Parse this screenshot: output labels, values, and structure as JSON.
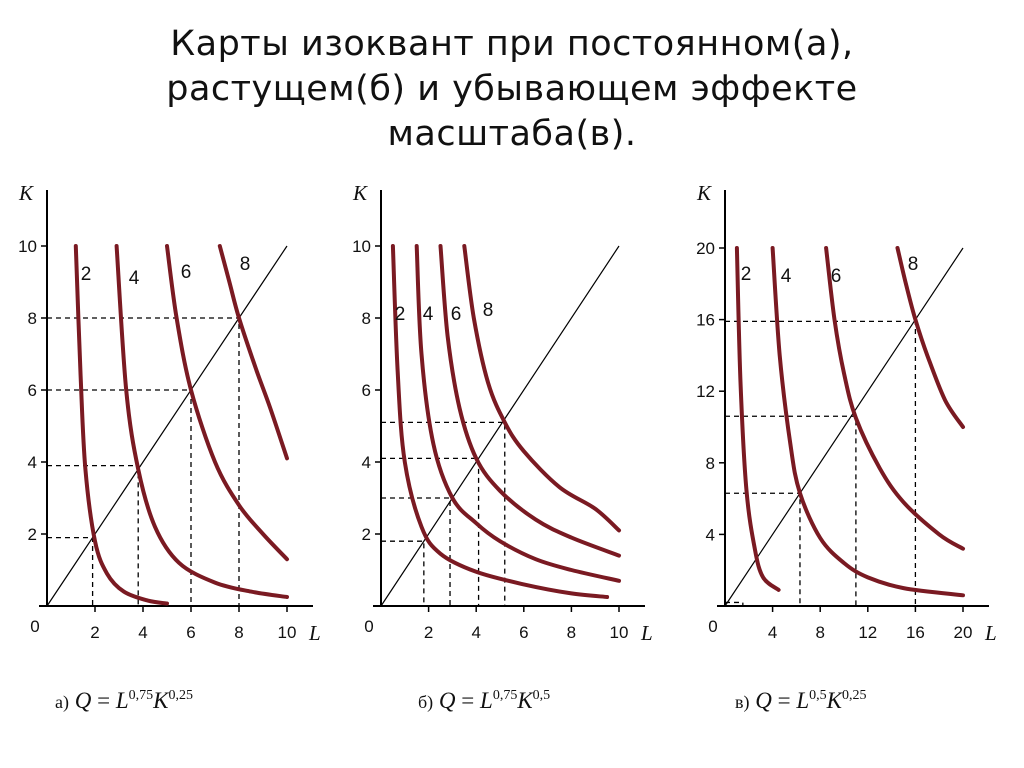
{
  "title": {
    "lines": [
      "Карты изоквант при постоянном(а),",
      "растущем(б) и убывающем эффекте",
      "масштаба(в)."
    ]
  },
  "colors": {
    "curve": "#7a1a22"
  },
  "chart_data": [
    {
      "type": "line",
      "function": "Q = L^0.75 K^0.25",
      "xlabel": "L",
      "ylabel": "K",
      "xlim": [
        0,
        10
      ],
      "ylim": [
        0,
        10
      ],
      "xticks": [
        "2",
        "4",
        "6",
        "8",
        "10"
      ],
      "yticks": [
        "2",
        "4",
        "6",
        "8",
        "10"
      ],
      "origin_label": "0",
      "series": [
        {
          "name": "2",
          "points": [
            [
              1.2,
              10
            ],
            [
              1.4,
              6.4
            ],
            [
              1.6,
              3.8
            ],
            [
              2,
              1.8
            ],
            [
              2.5,
              0.9
            ],
            [
              3.2,
              0.4
            ],
            [
              4.2,
              0.15
            ],
            [
              5,
              0.07
            ]
          ]
        },
        {
          "name": "4",
          "points": [
            [
              2.9,
              10
            ],
            [
              3.3,
              6
            ],
            [
              3.8,
              3.8
            ],
            [
              4.5,
              2.2
            ],
            [
              5.5,
              1.2
            ],
            [
              7,
              0.65
            ],
            [
              8.5,
              0.4
            ],
            [
              10,
              0.25
            ]
          ]
        },
        {
          "name": "6",
          "points": [
            [
              5,
              10
            ],
            [
              5.4,
              8
            ],
            [
              6,
              6
            ],
            [
              7,
              4
            ],
            [
              8,
              2.8
            ],
            [
              9,
              2
            ],
            [
              10,
              1.3
            ]
          ]
        },
        {
          "name": "8",
          "points": [
            [
              7.2,
              10
            ],
            [
              7.6,
              9
            ],
            [
              8,
              8
            ],
            [
              8.7,
              6.6
            ],
            [
              9.3,
              5.5
            ],
            [
              10,
              4.1
            ]
          ]
        }
      ],
      "ray": [
        [
          0,
          0
        ],
        [
          10,
          10
        ]
      ],
      "reference_points": [
        [
          1.9,
          1.9
        ],
        [
          3.8,
          3.9
        ],
        [
          6,
          6
        ],
        [
          8,
          8
        ]
      ],
      "series_labels": [
        "2",
        "4",
        "6",
        "8"
      ],
      "formula": {
        "prefix": "а)",
        "q": "Q",
        "eq": "=",
        "base1": "L",
        "exp1": "0,75",
        "base2": "K",
        "exp2": "0,25"
      }
    },
    {
      "type": "line",
      "function": "Q = L^0.75 K^0.5",
      "xlabel": "L",
      "ylabel": "K",
      "xlim": [
        0,
        10
      ],
      "ylim": [
        0,
        10
      ],
      "xticks": [
        "2",
        "4",
        "6",
        "8",
        "10"
      ],
      "yticks": [
        "2",
        "4",
        "6",
        "8",
        "10"
      ],
      "origin_label": "0",
      "series": [
        {
          "name": "2",
          "points": [
            [
              0.5,
              10
            ],
            [
              0.7,
              6.5
            ],
            [
              1,
              4
            ],
            [
              1.7,
              2.2
            ],
            [
              2.5,
              1.45
            ],
            [
              4,
              0.95
            ],
            [
              6,
              0.6
            ],
            [
              8,
              0.35
            ],
            [
              9.5,
              0.25
            ]
          ]
        },
        {
          "name": "4",
          "points": [
            [
              1.5,
              10
            ],
            [
              1.7,
              7
            ],
            [
              2.2,
              4.5
            ],
            [
              3,
              3
            ],
            [
              4,
              2.3
            ],
            [
              5,
              1.8
            ],
            [
              6.5,
              1.3
            ],
            [
              8,
              1
            ],
            [
              10,
              0.7
            ]
          ]
        },
        {
          "name": "6",
          "points": [
            [
              2.5,
              10
            ],
            [
              2.8,
              7.5
            ],
            [
              3.3,
              5.5
            ],
            [
              4,
              4.1
            ],
            [
              5,
              3.2
            ],
            [
              6.5,
              2.4
            ],
            [
              8,
              1.9
            ],
            [
              10,
              1.4
            ]
          ]
        },
        {
          "name": "8",
          "points": [
            [
              3.5,
              10
            ],
            [
              3.9,
              8
            ],
            [
              4.5,
              6.2
            ],
            [
              5.2,
              5.1
            ],
            [
              6,
              4.3
            ],
            [
              7.5,
              3.3
            ],
            [
              9,
              2.7
            ],
            [
              10,
              2.1
            ]
          ]
        }
      ],
      "ray": [
        [
          0,
          0
        ],
        [
          10,
          10
        ]
      ],
      "reference_points": [
        [
          1.8,
          1.8
        ],
        [
          2.9,
          3
        ],
        [
          4.1,
          4.1
        ],
        [
          5.2,
          5.1
        ]
      ],
      "series_labels": [
        "2",
        "4",
        "6",
        "8"
      ],
      "formula": {
        "prefix": "б)",
        "q": "Q",
        "eq": "=",
        "base1": "L",
        "exp1": "0,75",
        "base2": "K",
        "exp2": "0,5"
      }
    },
    {
      "type": "line",
      "function": "Q = L^0.5 K^0.25",
      "xlabel": "L",
      "ylabel": "K",
      "xlim": [
        0,
        20
      ],
      "ylim": [
        0,
        20
      ],
      "xticks": [
        "4",
        "8",
        "12",
        "16",
        "20"
      ],
      "yticks": [
        "4",
        "8",
        "12",
        "16",
        "20"
      ],
      "origin_label": "0",
      "series": [
        {
          "name": "2",
          "points": [
            [
              1,
              20
            ],
            [
              1.3,
              12.5
            ],
            [
              1.8,
              6.5
            ],
            [
              2.5,
              3.2
            ],
            [
              3.2,
              1.6
            ],
            [
              4.5,
              0.9
            ]
          ]
        },
        {
          "name": "4",
          "points": [
            [
              4,
              20
            ],
            [
              4.6,
              14
            ],
            [
              5.5,
              9
            ],
            [
              6.3,
              6.3
            ],
            [
              8,
              3.8
            ],
            [
              10,
              2.4
            ],
            [
              12,
              1.6
            ],
            [
              15,
              1
            ],
            [
              20,
              0.6
            ]
          ]
        },
        {
          "name": "6",
          "points": [
            [
              8.5,
              20
            ],
            [
              9.2,
              16
            ],
            [
              10,
              13
            ],
            [
              11,
              10.5
            ],
            [
              13,
              7.7
            ],
            [
              15,
              5.8
            ],
            [
              18,
              4
            ],
            [
              20,
              3.2
            ]
          ]
        },
        {
          "name": "8",
          "points": [
            [
              14.5,
              20
            ],
            [
              15.2,
              18
            ],
            [
              16,
              16
            ],
            [
              17,
              14
            ],
            [
              18.5,
              11.5
            ],
            [
              20,
              10
            ]
          ]
        }
      ],
      "ray": [
        [
          0,
          0
        ],
        [
          20,
          20
        ]
      ],
      "reference_points": [
        [
          1.5,
          0.2
        ],
        [
          6.3,
          6.3
        ],
        [
          11,
          10.6
        ],
        [
          16,
          15.9
        ]
      ],
      "series_labels": [
        "2",
        "4",
        "6",
        "8"
      ],
      "formula": {
        "prefix": "в)",
        "q": "Q",
        "eq": "=",
        "base1": "L",
        "exp1": "0,5",
        "base2": "K",
        "exp2": "0,25"
      }
    }
  ]
}
